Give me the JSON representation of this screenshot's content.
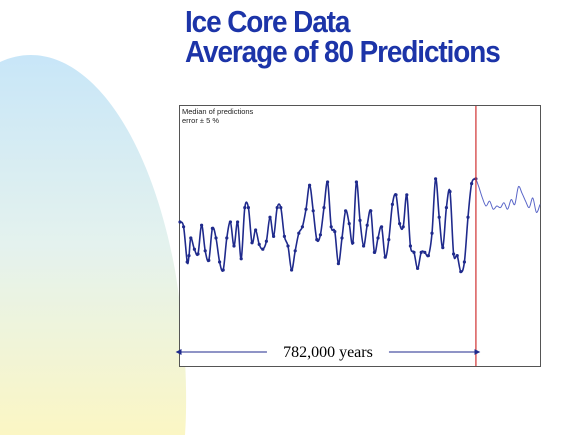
{
  "slide": {
    "title_line1": "Ice Core Data",
    "title_line2": "Average of 80 Predictions",
    "colors": {
      "title": "#1c34a8",
      "series_past": "#1f2a8c",
      "series_prediction": "#5a66c8",
      "present_marker": "#d03030",
      "background_gradient_top": "#c8e6f8",
      "background_gradient_bottom": "#fbf6c4"
    }
  },
  "chart_data": {
    "type": "line",
    "annotation_line1": "Median of predictions",
    "annotation_line2": "error ± 5 %",
    "span_label": "782,000 years",
    "xlim": [
      0,
      100
    ],
    "ylim": [
      0,
      100
    ],
    "grid": false,
    "present_x": 82.2,
    "series": [
      {
        "role": "ice-core-record",
        "x": [
          0,
          1,
          2,
          2.5,
          3,
          4,
          5,
          6,
          7,
          8,
          9,
          10,
          11,
          12,
          13,
          14,
          15,
          16,
          17,
          18,
          19,
          20,
          21,
          22,
          23,
          24,
          25,
          26,
          27,
          28,
          29,
          30,
          31,
          32,
          33,
          34,
          35,
          36,
          37,
          38,
          39,
          40,
          41,
          42,
          43,
          44,
          45,
          46,
          47,
          48,
          49,
          50,
          51,
          52,
          53,
          54,
          55,
          56,
          57,
          58,
          59,
          60,
          61,
          62,
          63,
          64,
          65,
          66,
          67,
          68,
          69,
          70,
          71,
          72,
          73,
          74,
          75,
          76,
          77,
          78,
          79,
          80,
          81,
          82.2
        ],
        "y": [
          55,
          52,
          30,
          34,
          45,
          38,
          35,
          53,
          37,
          31,
          51,
          45,
          30,
          25,
          45,
          55,
          40,
          55,
          32,
          64,
          64,
          42,
          50,
          41,
          38,
          43,
          58,
          46,
          64,
          64,
          46,
          40,
          25,
          37,
          48,
          52,
          63,
          78,
          62,
          44,
          47,
          64,
          80,
          52,
          49,
          29,
          45,
          62,
          54,
          42,
          80,
          56,
          40,
          53,
          62,
          36,
          45,
          52,
          33,
          44,
          66,
          72,
          54,
          52,
          72,
          40,
          36,
          26,
          36,
          36,
          34,
          48,
          82,
          58,
          39,
          64,
          74,
          35,
          34,
          24,
          30,
          58,
          79,
          82
        ]
      },
      {
        "role": "prediction",
        "x": [
          82.2,
          83,
          84,
          85,
          86,
          87,
          88,
          89,
          90,
          91,
          92,
          93,
          94,
          95,
          96,
          97,
          98,
          99,
          100
        ],
        "y": [
          82,
          77,
          70,
          65,
          68,
          63,
          65,
          64,
          67,
          63,
          69,
          66,
          77,
          73,
          68,
          64,
          70,
          61,
          66
        ]
      }
    ]
  }
}
